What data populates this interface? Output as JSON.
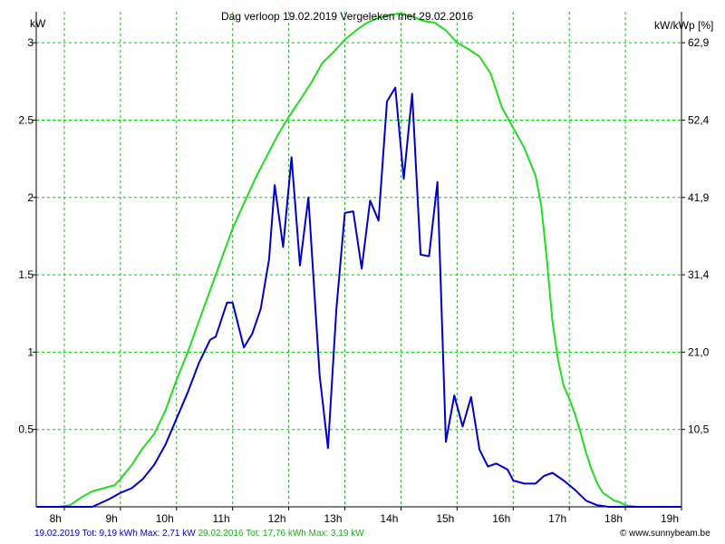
{
  "colors": {
    "background": "#ffffff",
    "grid": "#00cc00",
    "series_2019": "#0000cc",
    "series_2016": "#22dd22",
    "axis": "#000000"
  },
  "chart_data": {
    "type": "line",
    "title": "Dag  verloop 19.02.2019   Vergeleken met 29.02.2016",
    "ylabel": "kW",
    "ylabel_right": "kW/kWp [%]",
    "x_unit": "hour",
    "xlim": [
      7.5,
      19.0
    ],
    "ylim": [
      0,
      3.2
    ],
    "x_ticks": [
      8,
      9,
      10,
      11,
      12,
      13,
      14,
      15,
      16,
      17,
      18,
      19
    ],
    "x_tick_labels": [
      "8h",
      "9h",
      "10h",
      "11h",
      "12h",
      "13h",
      "14h",
      "15h",
      "16h",
      "17h",
      "18h",
      "19h"
    ],
    "y_ticks": [
      0.5,
      1,
      1.5,
      2,
      2.5,
      3
    ],
    "y_tick_labels": [
      "0.5",
      "1",
      "1.5",
      "2",
      "2.5",
      "3"
    ],
    "y2_ticks": [
      0.5,
      1,
      1.5,
      2,
      2.5,
      3
    ],
    "y2_tick_labels": [
      "10,5",
      "21,0",
      "31,4",
      "41,9",
      "52,4",
      "62,9"
    ],
    "grid": true,
    "series": [
      {
        "name": "29.02.2016",
        "color": "#22dd22",
        "points": [
          [
            7.5,
            0
          ],
          [
            7.9,
            0
          ],
          [
            8.1,
            0.01
          ],
          [
            8.3,
            0.06
          ],
          [
            8.5,
            0.1
          ],
          [
            8.7,
            0.12
          ],
          [
            8.9,
            0.14
          ],
          [
            9.0,
            0.18
          ],
          [
            9.2,
            0.27
          ],
          [
            9.4,
            0.38
          ],
          [
            9.6,
            0.47
          ],
          [
            9.8,
            0.62
          ],
          [
            10.0,
            0.82
          ],
          [
            10.2,
            1.0
          ],
          [
            10.4,
            1.2
          ],
          [
            10.6,
            1.4
          ],
          [
            10.8,
            1.6
          ],
          [
            11.0,
            1.8
          ],
          [
            11.2,
            1.96
          ],
          [
            11.4,
            2.12
          ],
          [
            11.6,
            2.26
          ],
          [
            11.8,
            2.4
          ],
          [
            12.0,
            2.52
          ],
          [
            12.2,
            2.63
          ],
          [
            12.4,
            2.74
          ],
          [
            12.6,
            2.87
          ],
          [
            12.8,
            2.94
          ],
          [
            13.0,
            3.02
          ],
          [
            13.2,
            3.08
          ],
          [
            13.4,
            3.13
          ],
          [
            13.6,
            3.16
          ],
          [
            13.8,
            3.18
          ],
          [
            14.0,
            3.19
          ],
          [
            14.2,
            3.17
          ],
          [
            14.4,
            3.14
          ],
          [
            14.6,
            3.13
          ],
          [
            14.8,
            3.08
          ],
          [
            15.0,
            3.0
          ],
          [
            15.2,
            2.96
          ],
          [
            15.4,
            2.91
          ],
          [
            15.6,
            2.8
          ],
          [
            15.8,
            2.58
          ],
          [
            16.0,
            2.45
          ],
          [
            16.2,
            2.32
          ],
          [
            16.4,
            2.14
          ],
          [
            16.5,
            1.95
          ],
          [
            16.6,
            1.6
          ],
          [
            16.7,
            1.2
          ],
          [
            16.8,
            0.95
          ],
          [
            16.9,
            0.78
          ],
          [
            17.0,
            0.7
          ],
          [
            17.1,
            0.6
          ],
          [
            17.2,
            0.48
          ],
          [
            17.3,
            0.35
          ],
          [
            17.4,
            0.24
          ],
          [
            17.5,
            0.15
          ],
          [
            17.6,
            0.09
          ],
          [
            17.8,
            0.04
          ],
          [
            17.9,
            0.03
          ],
          [
            18.0,
            0.01
          ],
          [
            18.2,
            0
          ],
          [
            18.5,
            0
          ]
        ]
      },
      {
        "name": "19.02.2019",
        "color": "#0000cc",
        "points": [
          [
            7.5,
            0
          ],
          [
            8.5,
            0
          ],
          [
            8.8,
            0.05
          ],
          [
            9.0,
            0.09
          ],
          [
            9.2,
            0.12
          ],
          [
            9.4,
            0.18
          ],
          [
            9.6,
            0.27
          ],
          [
            9.8,
            0.4
          ],
          [
            10.0,
            0.57
          ],
          [
            10.2,
            0.74
          ],
          [
            10.4,
            0.93
          ],
          [
            10.6,
            1.08
          ],
          [
            10.7,
            1.1
          ],
          [
            10.9,
            1.32
          ],
          [
            11.0,
            1.32
          ],
          [
            11.2,
            1.03
          ],
          [
            11.35,
            1.12
          ],
          [
            11.5,
            1.28
          ],
          [
            11.65,
            1.6
          ],
          [
            11.75,
            2.08
          ],
          [
            11.9,
            1.68
          ],
          [
            12.05,
            2.26
          ],
          [
            12.2,
            1.56
          ],
          [
            12.35,
            2.0
          ],
          [
            12.55,
            0.85
          ],
          [
            12.7,
            0.38
          ],
          [
            12.85,
            1.28
          ],
          [
            13.0,
            1.9
          ],
          [
            13.15,
            1.91
          ],
          [
            13.3,
            1.54
          ],
          [
            13.45,
            1.98
          ],
          [
            13.6,
            1.85
          ],
          [
            13.75,
            2.62
          ],
          [
            13.9,
            2.71
          ],
          [
            14.05,
            2.12
          ],
          [
            14.2,
            2.67
          ],
          [
            14.35,
            1.63
          ],
          [
            14.5,
            1.62
          ],
          [
            14.65,
            2.1
          ],
          [
            14.8,
            0.42
          ],
          [
            14.95,
            0.72
          ],
          [
            15.1,
            0.52
          ],
          [
            15.25,
            0.71
          ],
          [
            15.4,
            0.37
          ],
          [
            15.55,
            0.26
          ],
          [
            15.7,
            0.28
          ],
          [
            15.9,
            0.24
          ],
          [
            16.0,
            0.17
          ],
          [
            16.2,
            0.15
          ],
          [
            16.4,
            0.15
          ],
          [
            16.55,
            0.2
          ],
          [
            16.7,
            0.22
          ],
          [
            16.9,
            0.17
          ],
          [
            17.1,
            0.11
          ],
          [
            17.3,
            0.04
          ],
          [
            17.5,
            0.01
          ],
          [
            17.7,
            0
          ],
          [
            18.5,
            0
          ],
          [
            19.0,
            0
          ]
        ]
      }
    ]
  },
  "footer": {
    "stats_2019": "19.02.2019 Tot: 9,19 kWh Max: 2,71 kW",
    "stats_2016": "29.02.2016 Tot: 17,76 kWh Max: 3,19 kW",
    "credit": "www.sunnybeam.be",
    "credit_symbol": "©"
  }
}
